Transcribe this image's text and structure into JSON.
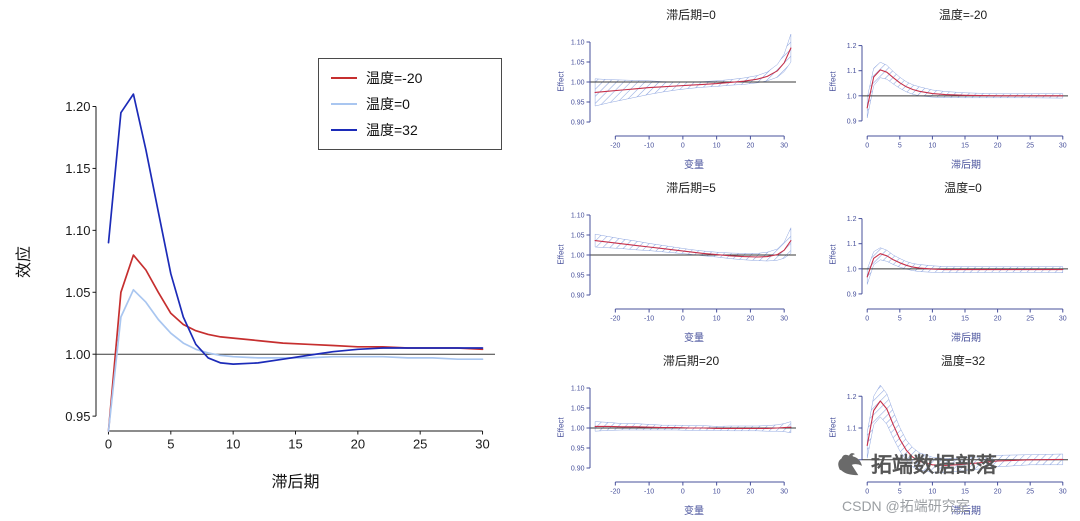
{
  "watermark": {
    "brand": "拓端数据部落",
    "credit": "CSDN @拓端研究室"
  },
  "chart_data": [
    {
      "id": "main-lag-response",
      "type": "line",
      "title": "",
      "xlabel": "滞后期",
      "ylabel": "效应",
      "xlim": [
        -1,
        31
      ],
      "ylim": [
        0.938,
        1.223
      ],
      "xticks": [
        0,
        5,
        10,
        15,
        20,
        25,
        30
      ],
      "yticks": [
        0.95,
        1.0,
        1.05,
        1.1,
        1.15,
        1.2
      ],
      "ydec": 2,
      "refline": 1.0,
      "refline_color": "#3a3a3a",
      "ink": "#1a1a1a",
      "grid": false,
      "legend_position": "top-right",
      "legend": [
        {
          "label": "温度=-20",
          "color": "#c62f2f"
        },
        {
          "label": "温度=0",
          "color": "#a9c6f0"
        },
        {
          "label": "温度=32",
          "color": "#1c2bb8"
        }
      ],
      "x": [
        0,
        1,
        2,
        3,
        4,
        5,
        6,
        7,
        8,
        9,
        10,
        12,
        14,
        16,
        18,
        20,
        22,
        24,
        26,
        28,
        30
      ],
      "series": [
        {
          "name": "温度=-20",
          "color": "#c62f2f",
          "y": [
            0.938,
            1.05,
            1.08,
            1.068,
            1.05,
            1.033,
            1.024,
            1.019,
            1.016,
            1.014,
            1.013,
            1.011,
            1.009,
            1.008,
            1.007,
            1.006,
            1.006,
            1.005,
            1.005,
            1.005,
            1.004
          ]
        },
        {
          "name": "温度=0",
          "color": "#a9c6f0",
          "y": [
            0.938,
            1.03,
            1.052,
            1.042,
            1.028,
            1.017,
            1.009,
            1.004,
            1.001,
            0.999,
            0.998,
            0.997,
            0.997,
            0.997,
            0.998,
            0.998,
            0.998,
            0.997,
            0.997,
            0.996,
            0.996
          ]
        },
        {
          "name": "温度=32",
          "color": "#1c2bb8",
          "y": [
            1.09,
            1.195,
            1.21,
            1.165,
            1.115,
            1.065,
            1.03,
            1.008,
            0.997,
            0.993,
            0.992,
            0.993,
            0.996,
            0.999,
            1.002,
            1.004,
            1.005,
            1.005,
            1.005,
            1.005,
            1.005
          ]
        }
      ]
    },
    {
      "id": "lag0",
      "type": "line",
      "title": "滞后期=0",
      "xlabel": "变量",
      "ylabel": "Effect",
      "xlim": [
        -27.5,
        33.5
      ],
      "ylim": [
        0.865,
        1.135
      ],
      "xticks": [
        -20,
        -10,
        0,
        10,
        20,
        30
      ],
      "yticks": [
        0.9,
        0.95,
        1.0,
        1.05,
        1.1
      ],
      "ydec": 2,
      "refline": 1.0,
      "refline_color": "#3a3a3a",
      "ink": "#47509b",
      "color": "#c6304a",
      "ci_color": "#8fa6e0",
      "x": [
        -26,
        -22,
        -18,
        -14,
        -10,
        -6,
        -2,
        2,
        6,
        10,
        14,
        18,
        22,
        25,
        28,
        30,
        32
      ],
      "y": [
        0.974,
        0.977,
        0.98,
        0.983,
        0.986,
        0.988,
        0.99,
        0.992,
        0.994,
        0.996,
        0.999,
        1.002,
        1.007,
        1.014,
        1.028,
        1.048,
        1.085
      ],
      "ci_lo": [
        0.94,
        0.948,
        0.955,
        0.962,
        0.969,
        0.975,
        0.98,
        0.984,
        0.987,
        0.989,
        0.992,
        0.994,
        0.998,
        1.003,
        1.012,
        1.026,
        1.05
      ],
      "ci_hi": [
        1.008,
        1.006,
        1.005,
        1.004,
        1.003,
        1.001,
        1.0,
        1.0,
        1.001,
        1.003,
        1.006,
        1.01,
        1.016,
        1.025,
        1.044,
        1.07,
        1.12
      ]
    },
    {
      "id": "temp-neg20",
      "type": "line",
      "title": "温度=-20",
      "xlabel": "滞后期",
      "ylabel": "Effect",
      "xlim": [
        -0.8,
        30.8
      ],
      "ylim": [
        0.84,
        1.27
      ],
      "xticks": [
        0,
        5,
        10,
        15,
        20,
        25,
        30
      ],
      "yticks": [
        0.9,
        1.0,
        1.1,
        1.2
      ],
      "ydec": 1,
      "refline": 1.0,
      "refline_color": "#3a3a3a",
      "ink": "#47509b",
      "color": "#c6304a",
      "ci_color": "#8fa6e0",
      "x": [
        0,
        1,
        2,
        3,
        4,
        5,
        6,
        7,
        8,
        10,
        12,
        15,
        20,
        25,
        30
      ],
      "y": [
        0.952,
        1.075,
        1.103,
        1.094,
        1.072,
        1.052,
        1.036,
        1.025,
        1.018,
        1.009,
        1.005,
        1.002,
        1.0,
        1.0,
        1.0
      ],
      "ci_lo": [
        0.912,
        1.04,
        1.072,
        1.066,
        1.047,
        1.03,
        1.016,
        1.006,
        1.0,
        0.995,
        0.993,
        0.992,
        0.992,
        0.992,
        0.991
      ],
      "ci_hi": [
        0.992,
        1.11,
        1.134,
        1.122,
        1.097,
        1.074,
        1.056,
        1.044,
        1.036,
        1.023,
        1.017,
        1.012,
        1.008,
        1.008,
        1.009
      ]
    },
    {
      "id": "lag5",
      "type": "line",
      "title": "滞后期=5",
      "xlabel": "变量",
      "ylabel": "Effect",
      "xlim": [
        -27.5,
        33.5
      ],
      "ylim": [
        0.865,
        1.135
      ],
      "xticks": [
        -20,
        -10,
        0,
        10,
        20,
        30
      ],
      "yticks": [
        0.9,
        0.95,
        1.0,
        1.05,
        1.1
      ],
      "ydec": 2,
      "refline": 1.0,
      "refline_color": "#3a3a3a",
      "ink": "#47509b",
      "color": "#c6304a",
      "ci_color": "#8fa6e0",
      "x": [
        -26,
        -22,
        -18,
        -14,
        -10,
        -6,
        -2,
        2,
        6,
        10,
        14,
        18,
        22,
        25,
        28,
        30,
        32
      ],
      "y": [
        1.036,
        1.032,
        1.028,
        1.024,
        1.02,
        1.016,
        1.012,
        1.008,
        1.004,
        1.001,
        0.998,
        0.996,
        0.995,
        0.996,
        1.001,
        1.012,
        1.036
      ],
      "ci_lo": [
        1.02,
        1.018,
        1.016,
        1.013,
        1.011,
        1.008,
        1.005,
        1.002,
        0.998,
        0.995,
        0.991,
        0.988,
        0.986,
        0.985,
        0.987,
        0.992,
        1.004
      ],
      "ci_hi": [
        1.052,
        1.046,
        1.04,
        1.035,
        1.029,
        1.024,
        1.019,
        1.014,
        1.01,
        1.007,
        1.005,
        1.004,
        1.004,
        1.007,
        1.015,
        1.032,
        1.068
      ]
    },
    {
      "id": "temp-0",
      "type": "line",
      "title": "温度=0",
      "xlabel": "滞后期",
      "ylabel": "Effect",
      "xlim": [
        -0.8,
        30.8
      ],
      "ylim": [
        0.84,
        1.27
      ],
      "xticks": [
        0,
        5,
        10,
        15,
        20,
        25,
        30
      ],
      "yticks": [
        0.9,
        1.0,
        1.1,
        1.2
      ],
      "ydec": 1,
      "refline": 1.0,
      "refline_color": "#3a3a3a",
      "ink": "#47509b",
      "color": "#c6304a",
      "ci_color": "#8fa6e0",
      "x": [
        0,
        1,
        2,
        3,
        4,
        5,
        6,
        7,
        8,
        10,
        12,
        15,
        20,
        25,
        30
      ],
      "y": [
        0.968,
        1.042,
        1.06,
        1.052,
        1.036,
        1.024,
        1.014,
        1.007,
        1.003,
        0.999,
        0.997,
        0.997,
        0.997,
        0.997,
        0.997
      ],
      "ci_lo": [
        0.938,
        1.016,
        1.036,
        1.03,
        1.017,
        1.007,
        0.999,
        0.993,
        0.989,
        0.986,
        0.985,
        0.985,
        0.986,
        0.986,
        0.985
      ],
      "ci_hi": [
        0.998,
        1.068,
        1.084,
        1.074,
        1.055,
        1.041,
        1.029,
        1.021,
        1.017,
        1.012,
        1.009,
        1.009,
        1.008,
        1.008,
        1.009
      ]
    },
    {
      "id": "lag20",
      "type": "line",
      "title": "滞后期=20",
      "xlabel": "变量",
      "ylabel": "Effect",
      "xlim": [
        -27.5,
        33.5
      ],
      "ylim": [
        0.865,
        1.135
      ],
      "xticks": [
        -20,
        -10,
        0,
        10,
        20,
        30
      ],
      "yticks": [
        0.9,
        0.95,
        1.0,
        1.05,
        1.1
      ],
      "ydec": 2,
      "refline": 1.0,
      "refline_color": "#3a3a3a",
      "ink": "#47509b",
      "color": "#c6304a",
      "ci_color": "#8fa6e0",
      "x": [
        -26,
        -22,
        -18,
        -14,
        -10,
        -6,
        -2,
        2,
        6,
        10,
        14,
        18,
        22,
        25,
        28,
        30,
        32
      ],
      "y": [
        1.004,
        1.004,
        1.003,
        1.003,
        1.002,
        1.001,
        1.001,
        1.0,
        1.0,
        0.999,
        0.999,
        0.999,
        0.999,
        0.999,
        1.0,
        1.001,
        1.002
      ],
      "ci_lo": [
        0.992,
        0.994,
        0.995,
        0.995,
        0.995,
        0.995,
        0.995,
        0.994,
        0.994,
        0.994,
        0.993,
        0.993,
        0.993,
        0.992,
        0.992,
        0.991,
        0.988
      ],
      "ci_hi": [
        1.016,
        1.014,
        1.011,
        1.011,
        1.009,
        1.007,
        1.007,
        1.006,
        1.006,
        1.004,
        1.005,
        1.005,
        1.005,
        1.006,
        1.008,
        1.011,
        1.016
      ]
    },
    {
      "id": "temp-32",
      "type": "line",
      "title": "温度=32",
      "xlabel": "滞后期",
      "ylabel": "Effect",
      "xlim": [
        -0.8,
        30.8
      ],
      "ylim": [
        0.93,
        1.27
      ],
      "xticks": [
        0,
        5,
        10,
        15,
        20,
        25,
        30
      ],
      "yticks": [
        1.0,
        1.1,
        1.2
      ],
      "ydec": 1,
      "refline": 1.0,
      "refline_color": "#3a3a3a",
      "ink": "#47509b",
      "color": "#c6304a",
      "ci_color": "#8fa6e0",
      "x": [
        0,
        1,
        2,
        3,
        4,
        5,
        6,
        7,
        8,
        10,
        12,
        15,
        20,
        25,
        30
      ],
      "y": [
        1.045,
        1.155,
        1.185,
        1.16,
        1.11,
        1.065,
        1.03,
        1.008,
        0.995,
        0.984,
        0.982,
        0.986,
        0.996,
        1.0,
        1.001
      ],
      "ci_lo": [
        1.005,
        1.11,
        1.135,
        1.112,
        1.068,
        1.028,
        0.998,
        0.978,
        0.968,
        0.96,
        0.96,
        0.966,
        0.978,
        0.984,
        0.984
      ],
      "ci_hi": [
        1.085,
        1.2,
        1.235,
        1.208,
        1.152,
        1.102,
        1.062,
        1.038,
        1.022,
        1.008,
        1.004,
        1.006,
        1.014,
        1.016,
        1.018
      ]
    }
  ]
}
